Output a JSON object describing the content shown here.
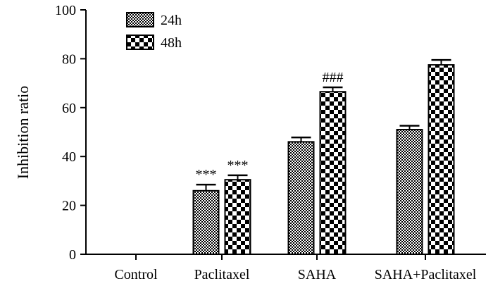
{
  "chart_data": {
    "type": "bar",
    "ylabel": "Inhibition ratio",
    "xlabel": "",
    "ylim": [
      0,
      100
    ],
    "yticks": [
      0,
      20,
      40,
      60,
      80,
      100
    ],
    "categories": [
      "Control",
      "Paclitaxel",
      "SAHA",
      "SAHA+Paclitaxel"
    ],
    "series": [
      {
        "name": "24h",
        "values": [
          0,
          26,
          46,
          51
        ],
        "errors": [
          0,
          2.5,
          1.8,
          1.6
        ],
        "pattern": "fine-check"
      },
      {
        "name": "48h",
        "values": [
          0,
          30.5,
          66.5,
          77.5
        ],
        "errors": [
          0,
          1.8,
          1.8,
          2.0
        ],
        "pattern": "coarse-check"
      }
    ],
    "annotations": [
      {
        "category": "Paclitaxel",
        "series": "24h",
        "text": "***"
      },
      {
        "category": "Paclitaxel",
        "series": "48h",
        "text": "***"
      },
      {
        "category": "SAHA",
        "series": "48h",
        "text": "###"
      }
    ],
    "legend": "top-left",
    "grid": false
  }
}
